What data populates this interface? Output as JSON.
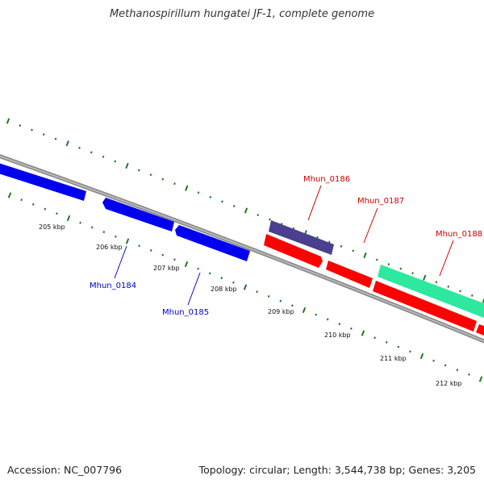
{
  "title": "Methanospirillum hungatei JF-1, complete genome",
  "footer": {
    "accession": "Accession: NC_007796",
    "summary": "Topology: circular; Length: 3,544,738 bp; Genes: 3,205"
  },
  "colors": {
    "background": "#ffffff",
    "backbone": "#8c8c8c",
    "tick": "#1f7a1f",
    "gene_blue": "#0000ee",
    "gene_red": "#ff0000",
    "gene_purple": "#4b3f8f",
    "gene_teal": "#2ee8a0",
    "label_blue": "#0000cc",
    "label_red": "#cc0000"
  },
  "scale_labels": [
    "205 kbp",
    "206 kbp",
    "207 kbp",
    "208 kbp",
    "209 kbp",
    "210 kbp",
    "211 kbp",
    "212 kbp"
  ],
  "gene_labels": [
    {
      "text": "Mhun_0184",
      "color": "#0000cc"
    },
    {
      "text": "Mhun_0185",
      "color": "#0000cc"
    },
    {
      "text": "Mhun_0186",
      "color": "#cc0000"
    },
    {
      "text": "Mhun_0187",
      "color": "#cc0000"
    },
    {
      "text": "Mhun_0188",
      "color": "#cc0000"
    }
  ]
}
